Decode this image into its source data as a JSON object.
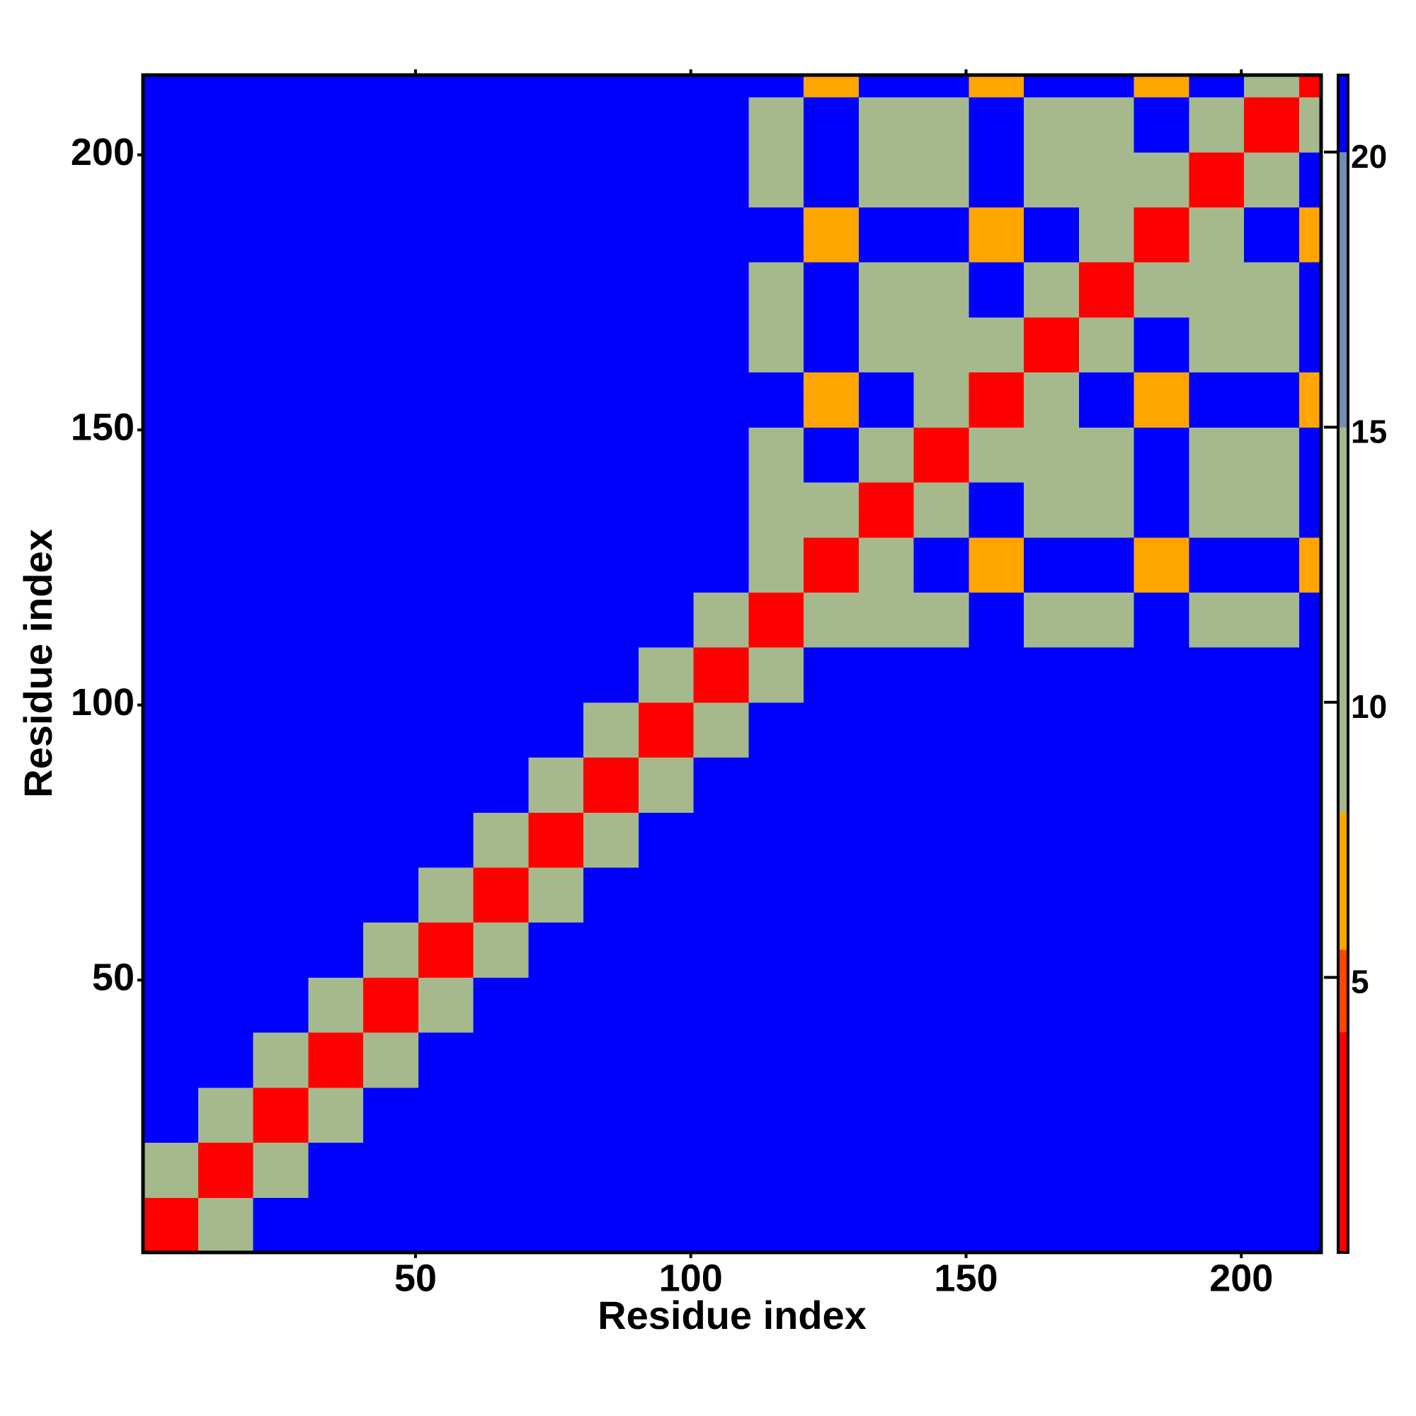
{
  "chart_data": {
    "type": "heatmap",
    "x_label": "Residue index",
    "y_label": "Residue index",
    "xlim": [
      0.5,
      214.5
    ],
    "ylim": [
      0.5,
      214.5
    ],
    "xticks": [
      50,
      100,
      150,
      200
    ],
    "yticks": [
      50,
      100,
      150,
      200
    ],
    "xbins": [
      0.5,
      10.5,
      20.5,
      30.5,
      40.5,
      50.5,
      60.5,
      70.5,
      80.5,
      90.5,
      100.5,
      110.5,
      120.5,
      130.5,
      140.5,
      150.5,
      160.5,
      170.5,
      180.5,
      190.5,
      200.5,
      210.5,
      214.5
    ],
    "ybins": [
      0.5,
      10.5,
      20.5,
      30.5,
      40.5,
      50.5,
      60.5,
      70.5,
      80.5,
      90.5,
      100.5,
      110.5,
      120.5,
      130.5,
      140.5,
      150.5,
      160.5,
      170.5,
      180.5,
      190.5,
      200.5,
      210.5,
      214.5
    ],
    "clim": [
      0,
      21.4
    ],
    "cticks": [
      5,
      10,
      15,
      20
    ],
    "color_bands": [
      {
        "from": 0,
        "to": 4,
        "color": "#ff0000"
      },
      {
        "from": 4,
        "to": 5.5,
        "color": "#ff4500"
      },
      {
        "from": 5.5,
        "to": 8,
        "color": "#ffa500"
      },
      {
        "from": 8,
        "to": 15,
        "color": "#a6b98c"
      },
      {
        "from": 15,
        "to": 20,
        "color": "#6f8fb0"
      },
      {
        "from": 20,
        "to": 21.4,
        "color": "#0000ff"
      }
    ],
    "values": [
      [
        3,
        12,
        21,
        21,
        21,
        21,
        21,
        21,
        21,
        21,
        21,
        21,
        21,
        21,
        21,
        21,
        21,
        21,
        21,
        21,
        21,
        21
      ],
      [
        12,
        3,
        12,
        21,
        21,
        21,
        21,
        21,
        21,
        21,
        21,
        21,
        21,
        21,
        21,
        21,
        21,
        21,
        21,
        21,
        21,
        21
      ],
      [
        21,
        12,
        3,
        12,
        21,
        21,
        21,
        21,
        21,
        21,
        21,
        21,
        21,
        21,
        21,
        21,
        21,
        21,
        21,
        21,
        21,
        21
      ],
      [
        21,
        21,
        12,
        3,
        12,
        21,
        21,
        21,
        21,
        21,
        21,
        21,
        21,
        21,
        21,
        21,
        21,
        21,
        21,
        21,
        21,
        21
      ],
      [
        21,
        21,
        21,
        12,
        3,
        12,
        21,
        21,
        21,
        21,
        21,
        21,
        21,
        21,
        21,
        21,
        21,
        21,
        21,
        21,
        21,
        21
      ],
      [
        21,
        21,
        21,
        21,
        12,
        3,
        12,
        21,
        21,
        21,
        21,
        21,
        21,
        21,
        21,
        21,
        21,
        21,
        21,
        21,
        21,
        21
      ],
      [
        21,
        21,
        21,
        21,
        21,
        12,
        3,
        12,
        21,
        21,
        21,
        21,
        21,
        21,
        21,
        21,
        21,
        21,
        21,
        21,
        21,
        21
      ],
      [
        21,
        21,
        21,
        21,
        21,
        21,
        12,
        3,
        12,
        21,
        21,
        21,
        21,
        21,
        21,
        21,
        21,
        21,
        21,
        21,
        21,
        21
      ],
      [
        21,
        21,
        21,
        21,
        21,
        21,
        21,
        12,
        3,
        12,
        21,
        21,
        21,
        21,
        21,
        21,
        21,
        21,
        21,
        21,
        21,
        21
      ],
      [
        21,
        21,
        21,
        21,
        21,
        21,
        21,
        21,
        12,
        3,
        12,
        21,
        21,
        21,
        21,
        21,
        21,
        21,
        21,
        21,
        21,
        21
      ],
      [
        21,
        21,
        21,
        21,
        21,
        21,
        21,
        21,
        21,
        12,
        3,
        12,
        21,
        21,
        21,
        21,
        21,
        21,
        21,
        21,
        21,
        21
      ],
      [
        21,
        21,
        21,
        21,
        21,
        21,
        21,
        21,
        21,
        21,
        12,
        3,
        10,
        13,
        13,
        21,
        13,
        13,
        21,
        13,
        13,
        21
      ],
      [
        21,
        21,
        21,
        21,
        21,
        21,
        21,
        21,
        21,
        21,
        21,
        10,
        3,
        10,
        21,
        7,
        21,
        21,
        7,
        21,
        21,
        7
      ],
      [
        21,
        21,
        21,
        21,
        21,
        21,
        21,
        21,
        21,
        21,
        21,
        13,
        10,
        3,
        10,
        21,
        13,
        13,
        21,
        13,
        13,
        21
      ],
      [
        21,
        21,
        21,
        21,
        21,
        21,
        21,
        21,
        21,
        21,
        21,
        13,
        21,
        10,
        3,
        10,
        13,
        13,
        21,
        13,
        13,
        21
      ],
      [
        21,
        21,
        21,
        21,
        21,
        21,
        21,
        21,
        21,
        21,
        21,
        21,
        7,
        21,
        10,
        3,
        10,
        21,
        7,
        21,
        21,
        7
      ],
      [
        21,
        21,
        21,
        21,
        21,
        21,
        21,
        21,
        21,
        21,
        21,
        13,
        21,
        13,
        13,
        10,
        3,
        10,
        21,
        13,
        13,
        21
      ],
      [
        21,
        21,
        21,
        21,
        21,
        21,
        21,
        21,
        21,
        21,
        21,
        13,
        21,
        13,
        13,
        21,
        10,
        3,
        10,
        13,
        13,
        21
      ],
      [
        21,
        21,
        21,
        21,
        21,
        21,
        21,
        21,
        21,
        21,
        21,
        21,
        7,
        21,
        21,
        7,
        21,
        10,
        3,
        10,
        21,
        7
      ],
      [
        21,
        21,
        21,
        21,
        21,
        21,
        21,
        21,
        21,
        21,
        21,
        13,
        21,
        13,
        13,
        21,
        13,
        13,
        10,
        3,
        10,
        21
      ],
      [
        21,
        21,
        21,
        21,
        21,
        21,
        21,
        21,
        21,
        21,
        21,
        13,
        21,
        13,
        13,
        21,
        13,
        13,
        21,
        10,
        3,
        10
      ],
      [
        21,
        21,
        21,
        21,
        21,
        21,
        21,
        21,
        21,
        21,
        21,
        21,
        7,
        21,
        21,
        7,
        21,
        21,
        7,
        21,
        10,
        3
      ]
    ]
  }
}
